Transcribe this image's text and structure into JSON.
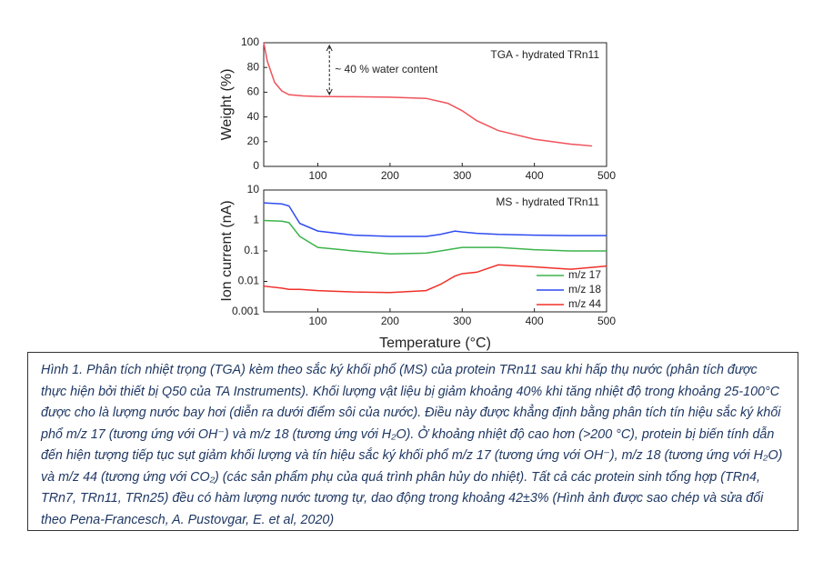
{
  "chart_data": [
    {
      "type": "line",
      "title": "TGA - hydrated TRn11",
      "annotation": "~ 40 % water content",
      "ylabel": "Weight (%)",
      "x": [
        25,
        30,
        40,
        50,
        60,
        80,
        100,
        150,
        200,
        250,
        280,
        300,
        320,
        350,
        400,
        450,
        480
      ],
      "series": [
        {
          "color": "#f0525a",
          "values": [
            100,
            85,
            68,
            61,
            58,
            57,
            56.5,
            56.3,
            56,
            55,
            51,
            45,
            37,
            29,
            22,
            18,
            16.5
          ]
        }
      ],
      "xlim": [
        25,
        500
      ],
      "xticks": [
        100,
        200,
        300,
        400,
        500
      ],
      "ylim": [
        0,
        100
      ],
      "yticks": [
        0,
        20,
        40,
        60,
        80,
        100
      ]
    },
    {
      "type": "line",
      "title": "MS - hydrated TRn11",
      "ylabel": "Ion current (nA)",
      "xlabel": "Temperature (°C)",
      "log_y": true,
      "legend": "lower right",
      "x": [
        25,
        50,
        60,
        75,
        100,
        150,
        200,
        250,
        270,
        290,
        300,
        320,
        350,
        400,
        450,
        500
      ],
      "series": [
        {
          "name": "m/z 17",
          "color": "#3cb44b",
          "values": [
            1.0,
            0.95,
            0.85,
            0.3,
            0.13,
            0.1,
            0.08,
            0.085,
            0.1,
            0.12,
            0.13,
            0.13,
            0.13,
            0.11,
            0.1,
            0.1
          ]
        },
        {
          "name": "m/z 18",
          "color": "#2f4cf0",
          "values": [
            3.8,
            3.5,
            3.0,
            0.8,
            0.45,
            0.33,
            0.3,
            0.3,
            0.35,
            0.45,
            0.42,
            0.38,
            0.35,
            0.33,
            0.32,
            0.32
          ]
        },
        {
          "name": "m/z 44",
          "color": "#f0302a",
          "values": [
            0.007,
            0.006,
            0.0055,
            0.0055,
            0.005,
            0.0045,
            0.0043,
            0.005,
            0.008,
            0.015,
            0.018,
            0.02,
            0.035,
            0.03,
            0.025,
            0.032
          ]
        }
      ],
      "xlim": [
        25,
        500
      ],
      "xticks": [
        100,
        200,
        300,
        400,
        500
      ],
      "ylim": [
        0.001,
        10
      ],
      "yticks": [
        0.001,
        0.01,
        0.1,
        1,
        10
      ]
    }
  ],
  "caption": "Hình 1. Phân tích nhiệt trọng (TGA) kèm theo sắc ký khối phổ (MS) của protein TRn11 sau khi hấp thụ nước (phân tích được thực hiện bởi thiết bị Q50 của TA Instruments). Khối lượng vật liệu bị giảm khoảng 40% khi tăng nhiệt độ trong khoảng 25-100°C được cho là lượng nước bay hơi (diễn ra dưới điểm sôi của nước). Điều này được khẳng định bằng phân tích tín hiệu sắc ký khối phổ m/z 17 (tương ứng với OH⁻) và m/z 18 (tương ứng với H₂O). Ở khoảng nhiệt độ cao hơn (>200 °C), protein bị biến tính dẫn đến hiện tượng tiếp tục sụt giảm khối lượng và tín hiệu sắc ký khối phổ m/z 17 (tương ứng với OH⁻), m/z 18 (tương ứng với H₂O) và m/z 44 (tương ứng với CO₂) (các sản phẩm phụ của quá trình phân hủy do nhiệt). Tất cả các protein sinh tổng hợp (TRn4, TRn7, TRn11, TRn25) đều có hàm lượng nước tương tự, dao động trong khoảng 42±3% (Hình ảnh được sao chép và sửa đổi theo Pena-Francesch, A. Pustovgar, E. et al, 2020)"
}
